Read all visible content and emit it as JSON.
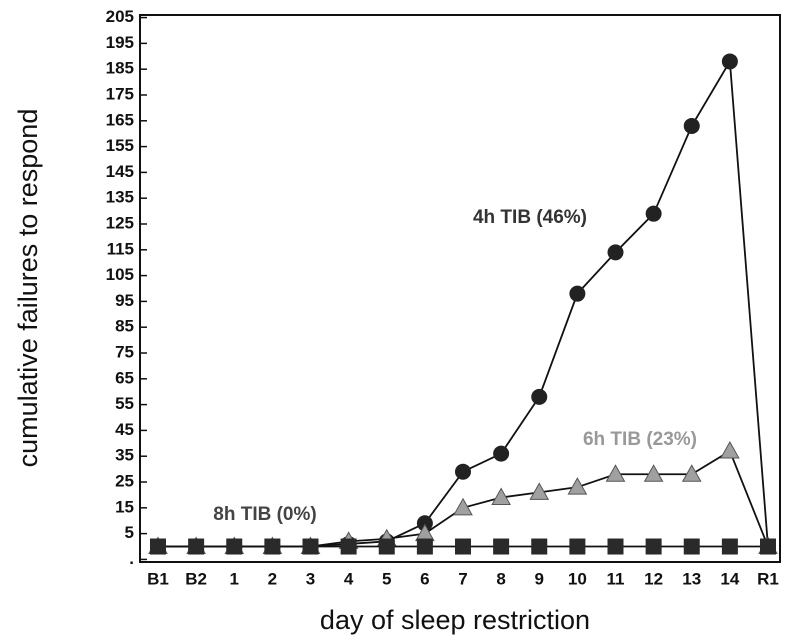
{
  "chart_data": {
    "type": "line",
    "x_label": "day of sleep restriction",
    "y_label": "cumulative failures to respond",
    "categories": [
      "B1",
      "B2",
      "1",
      "2",
      "3",
      "4",
      "5",
      "6",
      "7",
      "8",
      "9",
      "10",
      "11",
      "12",
      "13",
      "14",
      "R1"
    ],
    "series": [
      {
        "name": "4h TIB (46%)",
        "color": "#222222",
        "marker": "circle",
        "values": [
          0,
          0,
          0,
          0,
          0,
          1,
          2,
          9,
          29,
          36,
          58,
          98,
          114,
          129,
          163,
          188,
          0
        ]
      },
      {
        "name": "6h TIB (23%)",
        "color": "#a0a0a0",
        "marker": "triangle",
        "values": [
          0,
          0,
          0,
          0,
          0,
          2,
          3,
          5,
          15,
          19,
          21,
          23,
          28,
          28,
          28,
          37,
          0
        ]
      },
      {
        "name": "8h TIB (0%)",
        "color": "#2a2a2a",
        "marker": "square",
        "values": [
          0,
          0,
          0,
          0,
          0,
          0,
          0,
          0,
          0,
          0,
          0,
          0,
          0,
          0,
          0,
          0,
          0
        ]
      }
    ],
    "ylim": [
      -6,
      206
    ],
    "yticks": [
      {
        "value": -5,
        "label": "."
      },
      5,
      15,
      25,
      35,
      45,
      55,
      65,
      75,
      85,
      95,
      105,
      115,
      125,
      135,
      145,
      155,
      165,
      175,
      185,
      195,
      205
    ]
  }
}
